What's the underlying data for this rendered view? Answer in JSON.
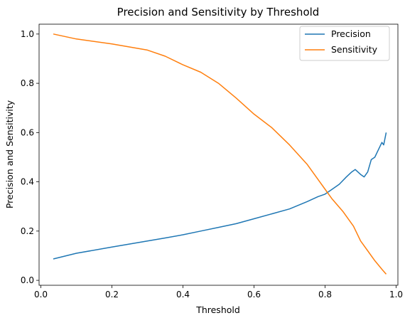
{
  "chart_data": {
    "type": "line",
    "title": "Precision and Sensitivity by Threshold",
    "xlabel": "Threshold",
    "ylabel": "Precision and Sensitivity",
    "xlim": [
      -0.005,
      1.005
    ],
    "ylim": [
      -0.02,
      1.04
    ],
    "grid": false,
    "legend_position": "top-right",
    "xticks": [
      0.0,
      0.2,
      0.4,
      0.6,
      0.8,
      1.0
    ],
    "xtick_labels": [
      "0.0",
      "0.2",
      "0.4",
      "0.6",
      "0.8",
      "1.0"
    ],
    "yticks": [
      0.0,
      0.2,
      0.4,
      0.6,
      0.8,
      1.0
    ],
    "ytick_labels": [
      "0.0",
      "0.2",
      "0.4",
      "0.6",
      "0.8",
      "1.0"
    ],
    "series": [
      {
        "name": "Precision",
        "color": "#1f77b4",
        "x": [
          0.035,
          0.1,
          0.2,
          0.3,
          0.35,
          0.4,
          0.45,
          0.5,
          0.55,
          0.6,
          0.65,
          0.7,
          0.75,
          0.78,
          0.8,
          0.82,
          0.84,
          0.86,
          0.875,
          0.885,
          0.9,
          0.91,
          0.92,
          0.93,
          0.94,
          0.95,
          0.96,
          0.965,
          0.972
        ],
        "y": [
          0.087,
          0.11,
          0.135,
          0.16,
          0.172,
          0.185,
          0.2,
          0.215,
          0.23,
          0.25,
          0.27,
          0.29,
          0.32,
          0.34,
          0.35,
          0.37,
          0.39,
          0.42,
          0.44,
          0.45,
          0.43,
          0.42,
          0.44,
          0.49,
          0.5,
          0.53,
          0.56,
          0.55,
          0.6
        ]
      },
      {
        "name": "Sensitivity",
        "color": "#ff7f0e",
        "x": [
          0.035,
          0.1,
          0.2,
          0.3,
          0.35,
          0.4,
          0.45,
          0.5,
          0.55,
          0.6,
          0.65,
          0.7,
          0.75,
          0.8,
          0.82,
          0.85,
          0.88,
          0.9,
          0.92,
          0.94,
          0.96,
          0.972
        ],
        "y": [
          1.0,
          0.98,
          0.96,
          0.935,
          0.91,
          0.875,
          0.845,
          0.8,
          0.74,
          0.675,
          0.62,
          0.55,
          0.47,
          0.37,
          0.33,
          0.28,
          0.22,
          0.16,
          0.12,
          0.08,
          0.045,
          0.025
        ]
      }
    ]
  }
}
